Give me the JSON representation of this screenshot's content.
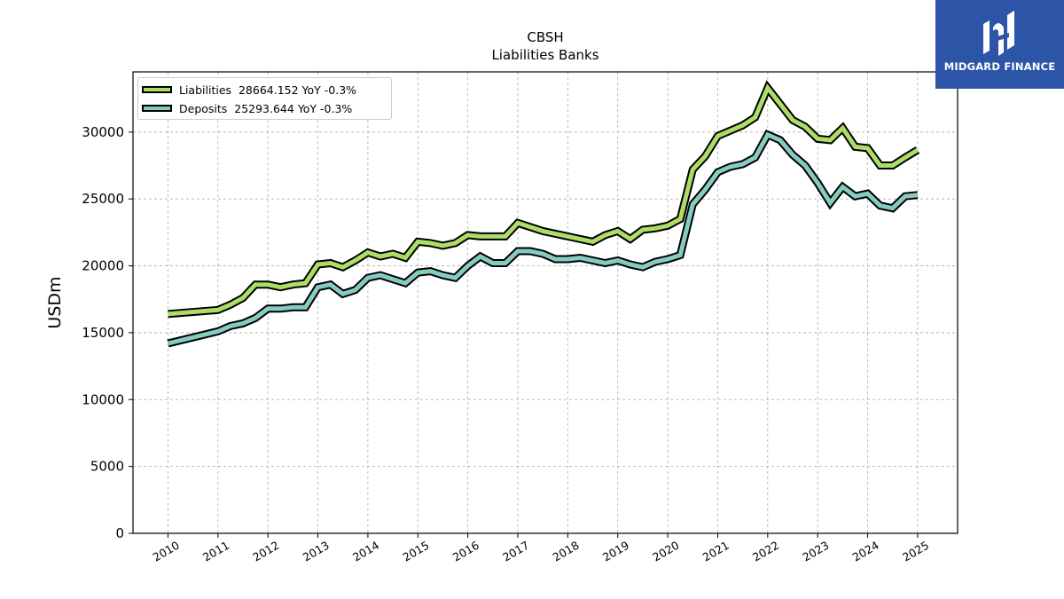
{
  "chart_data": {
    "type": "line",
    "title": "CBSH",
    "subtitle": "Liabilities Banks",
    "xlabel": "",
    "ylabel": "USDm",
    "xlim": [
      2009.3,
      2025.8
    ],
    "ylim": [
      0,
      34500
    ],
    "xticks": [
      "2010",
      "2011",
      "2012",
      "2013",
      "2014",
      "2015",
      "2016",
      "2017",
      "2018",
      "2019",
      "2020",
      "2021",
      "2022",
      "2023",
      "2024",
      "2025"
    ],
    "yticks": [
      0,
      5000,
      10000,
      15000,
      20000,
      25000,
      30000
    ],
    "grid": true,
    "legend_position": "top-left",
    "series": [
      {
        "name": "Liabilities",
        "legend_label": "Liabilities  28664.152 YoY -0.3%",
        "color": "#addd67",
        "x": [
          2010.0,
          2011.0,
          2011.25,
          2011.5,
          2011.75,
          2012.0,
          2012.25,
          2012.5,
          2012.75,
          2013.0,
          2013.25,
          2013.5,
          2013.75,
          2014.0,
          2014.25,
          2014.5,
          2014.75,
          2015.0,
          2015.25,
          2015.5,
          2015.75,
          2016.0,
          2016.25,
          2016.5,
          2016.75,
          2017.0,
          2017.25,
          2017.5,
          2017.75,
          2018.0,
          2018.25,
          2018.5,
          2018.75,
          2019.0,
          2019.25,
          2019.5,
          2019.75,
          2020.0,
          2020.25,
          2020.5,
          2020.75,
          2021.0,
          2021.25,
          2021.5,
          2021.75,
          2022.0,
          2022.25,
          2022.5,
          2022.75,
          2023.0,
          2023.25,
          2023.5,
          2023.75,
          2024.0,
          2024.25,
          2024.5,
          2024.75,
          2025.0
        ],
        "y": [
          16400,
          16700,
          17100,
          17600,
          18600,
          18600,
          18400,
          18600,
          18700,
          20100,
          20200,
          19900,
          20400,
          21000,
          20700,
          20900,
          20600,
          21800,
          21700,
          21500,
          21700,
          22300,
          22200,
          22200,
          22200,
          23200,
          22900,
          22600,
          22400,
          22200,
          22000,
          21800,
          22300,
          22600,
          22000,
          22700,
          22800,
          23000,
          23500,
          27200,
          28200,
          29700,
          30100,
          30500,
          31100,
          33300,
          32100,
          30900,
          30400,
          29500,
          29400,
          30300,
          28900,
          28800,
          27500,
          27500,
          28100,
          28664
        ]
      },
      {
        "name": "Deposits",
        "legend_label": "Deposits  25293.644 YoY -0.3%",
        "color": "#86cbbf",
        "x": [
          2010.0,
          2011.0,
          2011.25,
          2011.5,
          2011.75,
          2012.0,
          2012.25,
          2012.5,
          2012.75,
          2013.0,
          2013.25,
          2013.5,
          2013.75,
          2014.0,
          2014.25,
          2014.5,
          2014.75,
          2015.0,
          2015.25,
          2015.5,
          2015.75,
          2016.0,
          2016.25,
          2016.5,
          2016.75,
          2017.0,
          2017.25,
          2017.5,
          2017.75,
          2018.0,
          2018.25,
          2018.5,
          2018.75,
          2019.0,
          2019.25,
          2019.5,
          2019.75,
          2020.0,
          2020.25,
          2020.5,
          2020.75,
          2021.0,
          2021.25,
          2021.5,
          2021.75,
          2022.0,
          2022.25,
          2022.5,
          2022.75,
          2023.0,
          2023.25,
          2023.5,
          2023.75,
          2024.0,
          2024.25,
          2024.5,
          2024.75,
          2025.0
        ],
        "y": [
          14200,
          15100,
          15500,
          15700,
          16100,
          16800,
          16800,
          16900,
          16900,
          18400,
          18600,
          17900,
          18200,
          19100,
          19300,
          19000,
          18700,
          19500,
          19600,
          19300,
          19100,
          20000,
          20700,
          20200,
          20200,
          21100,
          21100,
          20900,
          20500,
          20500,
          20600,
          20400,
          20200,
          20400,
          20100,
          19900,
          20300,
          20500,
          20800,
          24600,
          25700,
          27000,
          27400,
          27600,
          28100,
          29800,
          29400,
          28300,
          27500,
          26200,
          24700,
          25900,
          25200,
          25400,
          24500,
          24300,
          25200,
          25294
        ]
      }
    ]
  },
  "logo": {
    "text": "MIDGARD FINANCE",
    "icon": "midgard-logo-icon",
    "background": "#2c55a8"
  }
}
